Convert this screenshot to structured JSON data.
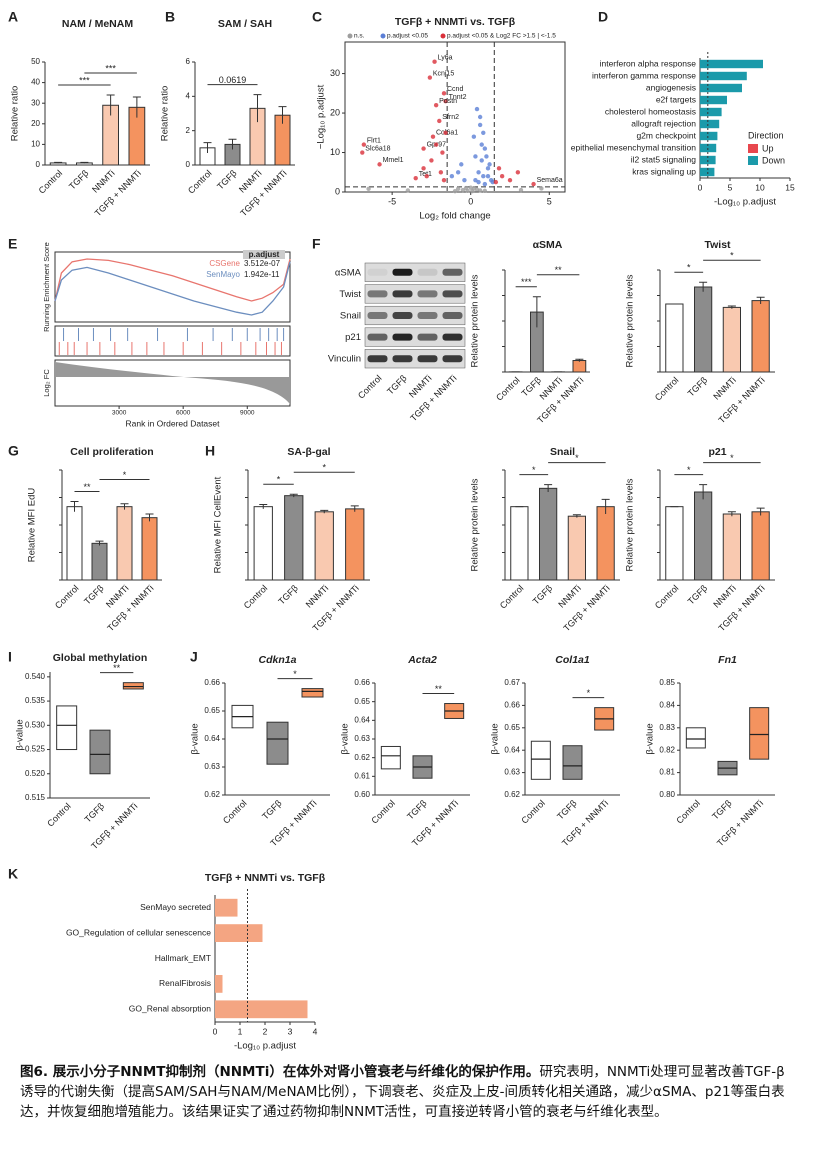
{
  "chart_data": [
    {
      "type": "bar",
      "letter": "A",
      "title": "NAM / MeNAM",
      "ylabel": "Relative ratio",
      "categories": [
        "Control",
        "TGFβ",
        "NNMTi",
        "TGFβ + NNMTi"
      ],
      "values": [
        1,
        1,
        29,
        28
      ],
      "errors": [
        0.3,
        0.3,
        5,
        5
      ],
      "colors": [
        "#ffffff",
        "#ffffff",
        "#f9c9b0",
        "#f4935f"
      ],
      "ylim": [
        0,
        50
      ],
      "yticks": [
        0,
        10,
        20,
        30,
        40,
        50
      ],
      "significance": [
        {
          "from": 0,
          "to": 2,
          "label": "***"
        },
        {
          "from": 1,
          "to": 3,
          "label": "***"
        }
      ]
    },
    {
      "type": "bar",
      "letter": "B",
      "title": "SAM / SAH",
      "ylabel": "Relative ratio",
      "categories": [
        "Control",
        "TGFβ",
        "NNMTi",
        "TGFβ + NNMTi"
      ],
      "values": [
        1.0,
        1.2,
        3.3,
        2.9
      ],
      "errors": [
        0.3,
        0.3,
        0.8,
        0.5
      ],
      "colors": [
        "#ffffff",
        "#8c8c8c",
        "#f9c9b0",
        "#f4935f"
      ],
      "ylim": [
        0,
        6
      ],
      "yticks": [
        0,
        2,
        4,
        6
      ],
      "significance": [
        {
          "from": 0,
          "to": 2,
          "label": "0.0619"
        }
      ]
    },
    {
      "type": "scatter",
      "letter": "C",
      "title": "TGFβ + NNMTi vs. TGFβ",
      "xlabel": "Log₂ fold change",
      "ylabel": "−Log₁₀ p.adjust",
      "xlim": [
        -8,
        6
      ],
      "xticks": [
        -5,
        0,
        5
      ],
      "ylim": [
        0,
        38
      ],
      "yticks": [
        0,
        10,
        20,
        30
      ],
      "fc_threshold": [
        -1.5,
        1.5
      ],
      "p_threshold": 1.3,
      "series": [
        {
          "name": "n.s.",
          "color": "#9e9e9e",
          "x": [
            -0.5,
            -0.2,
            0.1,
            0.4,
            -0.8,
            0.6,
            -0.3,
            0.2,
            0.9,
            -1.0,
            -6.5,
            3.2,
            -4.0,
            4.5,
            0.0
          ],
          "values": [
            0.5,
            0.3,
            0.2,
            0.6,
            0.8,
            0.4,
            1.0,
            0.9,
            0.3,
            0.2,
            0.8,
            0.5,
            0.4,
            0.9,
            1.1
          ]
        },
        {
          "name": "p.adjust <0.05",
          "color": "#5b7fd6",
          "x": [
            0.3,
            0.5,
            0.7,
            0.9,
            1.1,
            0.2,
            0.6,
            0.8,
            1.0,
            1.3,
            0.4,
            0.9,
            1.2,
            0.7,
            0.5,
            -0.4,
            -0.8,
            -1.2,
            -0.6,
            1.4,
            0.3,
            0.8,
            1.1,
            0.6
          ],
          "values": [
            3,
            5,
            8,
            11,
            6,
            14,
            17,
            4,
            9,
            3,
            21,
            2,
            7,
            12,
            2.5,
            3,
            5,
            4,
            7,
            2.5,
            9,
            15,
            4,
            19
          ]
        },
        {
          "name": "p.adjust <0.05 & Log2 FC >1.5 | <-1.5",
          "color": "#d9303a",
          "x": [
            -2.3,
            -2.6,
            -1.7,
            -1.6,
            -2.2,
            -2.0,
            -2.4,
            -3.0,
            -6.8,
            -6.9,
            -5.8,
            -3.5,
            4.0,
            -1.8,
            -2.5,
            -3.0,
            -1.9,
            -2.2,
            -1.6,
            -2.8,
            -1.7,
            2.0,
            1.8,
            2.5,
            1.6,
            3.0
          ],
          "values": [
            33,
            29,
            25,
            23,
            22,
            18,
            14,
            11,
            12,
            10,
            7,
            3.5,
            2,
            10,
            8,
            6,
            5,
            12,
            15,
            4,
            3,
            4,
            6,
            3,
            2.5,
            5
          ],
          "labels": [
            "Ly6a",
            "Kcnj15",
            "Ccnd",
            "Tnnt2",
            "Postn",
            "Sfrn2",
            "Col6a1",
            "Gpr97",
            "Flrt1",
            "Slc6a18",
            "Mmel1",
            "Tet1",
            "Sema6a",
            null,
            null,
            null,
            null,
            null,
            null,
            null,
            null,
            null,
            null,
            null,
            null,
            null
          ]
        }
      ]
    },
    {
      "type": "hbar",
      "letter": "D",
      "xlabel": "-Log₁₀ p.adjust",
      "categories": [
        "interferon alpha response",
        "interferon gamma response",
        "angiogenesis",
        "e2f targets",
        "cholesterol homeostasis",
        "allograft rejection",
        "g2m checkpoint",
        "epithelial mesenchymal transition",
        "il2 stat5 signaling",
        "kras signaling up"
      ],
      "values": [
        10.5,
        7.8,
        7,
        4.5,
        3.6,
        3.2,
        2.9,
        2.7,
        2.6,
        2.4
      ],
      "color": "#1b9aaa",
      "xlim": [
        0,
        15
      ],
      "xticks": [
        0,
        5,
        10,
        15
      ],
      "threshold": 1.3,
      "legend": {
        "title": "Direction",
        "entries": [
          {
            "name": "Up",
            "color": "#e8474e"
          },
          {
            "name": "Down",
            "color": "#1b9aaa"
          }
        ]
      }
    },
    {
      "type": "gsea",
      "letter": "E",
      "ylabel": "Running Enrichment Score",
      "fc_label": "Log₂ FC",
      "xlabel": "Rank in Ordered Dataset",
      "xlim": [
        0,
        11000
      ],
      "xticks": [
        3000,
        6000,
        9000
      ],
      "ylim": [
        -0.15,
        0.35
      ],
      "table_header": "p.adjust",
      "x": [
        0,
        300,
        800,
        1500,
        2500,
        3500,
        4500,
        5500,
        6500,
        7500,
        8500,
        9200,
        9700,
        10200,
        10700,
        11000
      ],
      "series": [
        {
          "name": "CSGene",
          "p_adjust": "3.512e-07",
          "color": "#e8756e",
          "values": [
            0,
            0.2,
            0.28,
            0.3,
            0.29,
            0.26,
            0.22,
            0.18,
            0.13,
            0.08,
            0.03,
            0.0,
            0.02,
            0.06,
            0.12,
            0.3
          ],
          "hits": [
            200,
            600,
            900,
            1500,
            2100,
            2800,
            3600,
            4300,
            5100,
            6000,
            6900,
            7800,
            8700,
            9400,
            9900,
            10300,
            10600
          ]
        },
        {
          "name": "SenMayo",
          "p_adjust": "1.942e-11",
          "color": "#6c8ebf",
          "values": [
            0,
            0.15,
            0.22,
            0.24,
            0.2,
            0.15,
            0.1,
            0.05,
            0.0,
            -0.04,
            -0.08,
            -0.1,
            -0.08,
            0.0,
            0.1,
            0.28
          ],
          "hits": [
            400,
            1100,
            1800,
            2600,
            3400,
            4800,
            6200,
            7400,
            8300,
            9000,
            9600,
            10000,
            10400,
            10700
          ]
        }
      ]
    },
    {
      "type": "blot",
      "letter": "F",
      "rows": [
        "αSMA",
        "Twist",
        "Snail",
        "p21",
        "Vinculin"
      ],
      "categories": [
        "Control",
        "TGFβ",
        "NNMTi",
        "TGFβ + NNMTi"
      ],
      "intensity": [
        [
          0.05,
          0.95,
          0.1,
          0.6
        ],
        [
          0.5,
          0.8,
          0.5,
          0.7
        ],
        [
          0.5,
          0.75,
          0.5,
          0.6
        ],
        [
          0.6,
          0.9,
          0.6,
          0.85
        ],
        [
          0.8,
          0.8,
          0.8,
          0.8
        ]
      ]
    },
    {
      "type": "bar",
      "title": "αSMA",
      "ylabel": "Relative protein levels",
      "categories": [
        "Control",
        "TGFβ",
        "NNMTi",
        "TGFβ + NNMTi"
      ],
      "values": [
        1,
        470,
        1,
        90
      ],
      "errors": [
        0,
        120,
        0,
        10
      ],
      "colors": [
        "#ffffff",
        "#8c8c8c",
        "#f9c9b0",
        "#f4935f"
      ],
      "ylim": [
        0,
        800
      ],
      "significance": [
        {
          "from": 0,
          "to": 1,
          "label": "***"
        },
        {
          "from": 1,
          "to": 3,
          "label": "**"
        }
      ]
    },
    {
      "type": "bar",
      "title": "Twist",
      "ylabel": "Relative protein levels",
      "categories": [
        "Control",
        "TGFβ",
        "NNMTi",
        "TGFβ + NNMTi"
      ],
      "values": [
        1,
        1.25,
        0.95,
        1.05
      ],
      "errors": [
        0,
        0.07,
        0.02,
        0.05
      ],
      "colors": [
        "#ffffff",
        "#8c8c8c",
        "#f9c9b0",
        "#f4935f"
      ],
      "ylim": [
        0,
        1.5
      ],
      "significance": [
        {
          "from": 0,
          "to": 1,
          "label": "*"
        },
        {
          "from": 1,
          "to": 3,
          "label": "*"
        }
      ]
    },
    {
      "type": "bar",
      "letter": "G",
      "title": "Cell proliferation",
      "ylabel": "Relative MFI EdU",
      "categories": [
        "Control",
        "TGFβ",
        "NNMTi",
        "TGFβ + NNMTi"
      ],
      "values": [
        1,
        0.5,
        1,
        0.85
      ],
      "errors": [
        0.07,
        0.03,
        0.04,
        0.05
      ],
      "colors": [
        "#ffffff",
        "#8c8c8c",
        "#f9c9b0",
        "#f4935f"
      ],
      "ylim": [
        0,
        1.5
      ],
      "significance": [
        {
          "from": 0,
          "to": 1,
          "label": "**"
        },
        {
          "from": 1,
          "to": 3,
          "label": "*"
        }
      ]
    },
    {
      "type": "bar",
      "letter": "H",
      "title": "SA-β-gal",
      "ylabel": "Relative MFI CellEvent",
      "categories": [
        "Control",
        "TGFβ",
        "NNMTi",
        "TGFβ + NNMTi"
      ],
      "values": [
        1,
        1.15,
        0.93,
        0.97
      ],
      "errors": [
        0.03,
        0.02,
        0.02,
        0.04
      ],
      "colors": [
        "#ffffff",
        "#8c8c8c",
        "#f9c9b0",
        "#f4935f"
      ],
      "ylim": [
        0,
        1.5
      ],
      "significance": [
        {
          "from": 0,
          "to": 1,
          "label": "*"
        },
        {
          "from": 1,
          "to": 3,
          "label": "*"
        }
      ]
    },
    {
      "type": "bar",
      "title": "Snail",
      "ylabel": "Relative protein levels",
      "categories": [
        "Control",
        "TGFβ",
        "NNMTi",
        "TGFβ + NNMTi"
      ],
      "values": [
        1,
        1.25,
        0.87,
        1
      ],
      "errors": [
        0,
        0.05,
        0.02,
        0.1
      ],
      "colors": [
        "#ffffff",
        "#8c8c8c",
        "#f9c9b0",
        "#f4935f"
      ],
      "ylim": [
        0,
        1.5
      ],
      "significance": [
        {
          "from": 0,
          "to": 1,
          "label": "*"
        },
        {
          "from": 1,
          "to": 3,
          "label": "*"
        }
      ]
    },
    {
      "type": "bar",
      "title": "p21",
      "ylabel": "Relative protein levels",
      "categories": [
        "Control",
        "TGFβ",
        "NNMTi",
        "TGFβ + NNMTi"
      ],
      "values": [
        1,
        1.2,
        0.9,
        0.93
      ],
      "errors": [
        0,
        0.1,
        0.03,
        0.05
      ],
      "colors": [
        "#ffffff",
        "#8c8c8c",
        "#f9c9b0",
        "#f4935f"
      ],
      "ylim": [
        0,
        1.5
      ],
      "significance": [
        {
          "from": 0,
          "to": 1,
          "label": "*"
        },
        {
          "from": 1,
          "to": 3,
          "label": "*"
        }
      ]
    },
    {
      "type": "box",
      "letter": "I",
      "title": "Global methylation",
      "ylabel": "β-value",
      "categories": [
        "Control",
        "TGFβ",
        "TGFβ + NNMTi"
      ],
      "boxes": [
        [
          0.525,
          0.53,
          0.534
        ],
        [
          0.52,
          0.524,
          0.529
        ],
        [
          0.5375,
          0.538,
          0.5388
        ]
      ],
      "colors": [
        "#ffffff",
        "#8c8c8c",
        "#f4935f"
      ],
      "ylim": [
        0.515,
        0.541
      ],
      "yticks": [
        0.515,
        {
          "value": 0.52,
          "label": "0.520"
        },
        0.525,
        {
          "value": 0.53,
          "label": "0.530"
        },
        0.535,
        {
          "value": 0.54,
          "label": "0.540"
        }
      ],
      "significance": [
        {
          "from": 1,
          "to": 2,
          "label": "**"
        }
      ]
    },
    {
      "type": "box",
      "letter": "J",
      "title": "Cdkn1a",
      "title_italic": true,
      "ylabel": "β-value",
      "categories": [
        "Control",
        "TGFβ",
        "TGFβ + NNMTi"
      ],
      "boxes": [
        [
          0.644,
          0.648,
          0.652
        ],
        [
          0.631,
          0.64,
          0.646
        ],
        [
          0.655,
          0.657,
          0.658
        ]
      ],
      "colors": [
        "#ffffff",
        "#8c8c8c",
        "#f4935f"
      ],
      "ylim": [
        0.62,
        0.66
      ],
      "yticks": [
        0.62,
        0.63,
        0.64,
        0.65,
        0.66
      ],
      "significance": [
        {
          "from": 1,
          "to": 2,
          "label": "*"
        }
      ]
    },
    {
      "type": "box",
      "title": "Acta2",
      "title_italic": true,
      "ylabel": "β-value",
      "categories": [
        "Control",
        "TGFβ",
        "TGFβ + NNMTi"
      ],
      "boxes": [
        [
          0.614,
          0.621,
          0.626
        ],
        [
          0.609,
          0.615,
          0.621
        ],
        [
          0.641,
          0.645,
          0.649
        ]
      ],
      "colors": [
        "#ffffff",
        "#8c8c8c",
        "#f4935f"
      ],
      "ylim": [
        0.6,
        0.66
      ],
      "yticks": [
        {
          "value": 0.6,
          "label": "0.60"
        },
        0.61,
        0.62,
        0.63,
        0.64,
        0.65,
        0.66
      ],
      "significance": [
        {
          "from": 1,
          "to": 2,
          "label": "**"
        }
      ]
    },
    {
      "type": "box",
      "title": "Col1a1",
      "title_italic": true,
      "ylabel": "β-value",
      "categories": [
        "Control",
        "TGFβ",
        "TGFβ + NNMTi"
      ],
      "boxes": [
        [
          0.627,
          0.636,
          0.644
        ],
        [
          0.627,
          0.633,
          0.642
        ],
        [
          0.649,
          0.654,
          0.659
        ]
      ],
      "colors": [
        "#ffffff",
        "#8c8c8c",
        "#f4935f"
      ],
      "ylim": [
        0.62,
        0.67
      ],
      "yticks": [
        0.62,
        0.63,
        0.64,
        0.65,
        0.66,
        0.67
      ],
      "significance": [
        {
          "from": 1,
          "to": 2,
          "label": "*"
        }
      ]
    },
    {
      "type": "box",
      "title": "Fn1",
      "title_italic": true,
      "ylabel": "β-value",
      "categories": [
        "Control",
        "TGFβ",
        "TGFβ + NNMTi"
      ],
      "boxes": [
        [
          0.821,
          0.825,
          0.83
        ],
        [
          0.809,
          0.812,
          0.815
        ],
        [
          0.816,
          0.827,
          0.839
        ]
      ],
      "colors": [
        "#ffffff",
        "#8c8c8c",
        "#f4935f"
      ],
      "ylim": [
        0.8,
        0.85
      ],
      "yticks": [
        {
          "value": 0.8,
          "label": "0.80"
        },
        0.81,
        0.82,
        0.83,
        0.84,
        0.85
      ],
      "significance": []
    },
    {
      "type": "hbar",
      "letter": "K",
      "title": "TGFβ + NNMTi vs. TGFβ",
      "xlabel": "-Log₁₀ p.adjust",
      "categories": [
        "SenMayo secreted",
        "GO_Regulation of cellular senescence",
        "Hallmark_EMT",
        "RenalFibrosis",
        "GO_Renal absorption"
      ],
      "values": [
        0.9,
        1.9,
        0,
        0.3,
        3.7
      ],
      "color": "#f4a582",
      "xlim": [
        0,
        4
      ],
      "xticks": [
        0,
        1,
        2,
        3,
        4
      ],
      "threshold": 1.3
    }
  ],
  "caption": {
    "bold": "图6. 展示小分子NNMT抑制剂（NNMTi）在体外对肾小管衰老与纤维化的保护作用。",
    "text": "研究表明，NNMTi处理可显著改善TGF-β诱导的代谢失衡（提高SAM/SAH与NAM/MeNAM比例），下调衰老、炎症及上皮-间质转化相关通路，减少αSMA、p21等蛋白表达，并恢复细胞增殖能力。该结果证实了通过药物抑制NNMT活性，可直接逆转肾小管的衰老与纤维化表型。"
  }
}
